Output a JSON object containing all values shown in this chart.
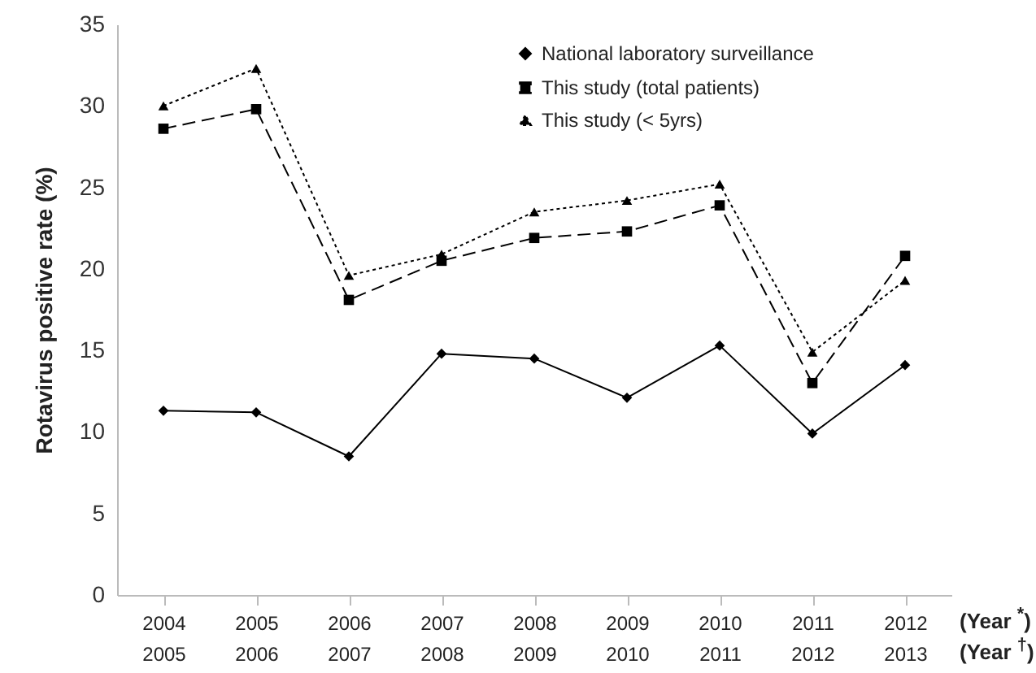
{
  "chart_data": {
    "type": "line",
    "ylabel": "Rotavirus positive rate (%)",
    "categories": [
      "2004\n2005",
      "2005\n2006",
      "2006\n2007",
      "2007\n2008",
      "2008\n2009",
      "2009\n2010",
      "2010\n2011",
      "2011\n2012",
      "2012\n2013"
    ],
    "series": [
      {
        "name": "National laboratory surveillance",
        "color": "#000000",
        "marker": "diamond",
        "line_style": "solid",
        "values": [
          11.3,
          11.2,
          8.5,
          14.8,
          14.5,
          12.1,
          15.3,
          9.9,
          14.1
        ]
      },
      {
        "name": "This study (total patients)",
        "color": "#000000",
        "marker": "square",
        "line_style": "dashed",
        "values": [
          28.6,
          29.8,
          18.1,
          20.5,
          21.9,
          22.3,
          23.9,
          13.0,
          20.8
        ]
      },
      {
        "name": "This study (< 5yrs)",
        "color": "#000000",
        "marker": "triangle",
        "line_style": "dotted",
        "values": [
          30.0,
          32.3,
          19.6,
          20.9,
          23.5,
          24.2,
          25.2,
          14.9,
          19.3
        ]
      }
    ],
    "ylim": [
      0,
      35
    ],
    "yticks": [
      0,
      5,
      10,
      15,
      20,
      25,
      30,
      35
    ],
    "grid": false,
    "legend": "top right",
    "annotations": [
      "(Year $^{*}$)",
      "(Year $^{†}$)"
    ]
  }
}
